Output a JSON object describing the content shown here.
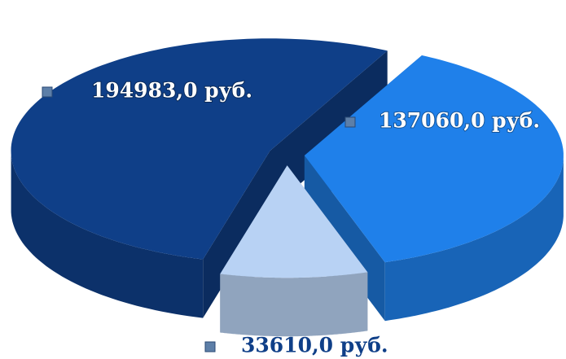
{
  "chart_data": {
    "type": "pie3d",
    "values": [
      194983.0,
      137060.0,
      33610.0
    ],
    "value_labels": [
      "194983,0 руб.",
      "137060,0 руб.",
      "33610,0 руб."
    ],
    "colors": [
      "#0f3f88",
      "#1f80ea",
      "#b8d2f4"
    ]
  }
}
